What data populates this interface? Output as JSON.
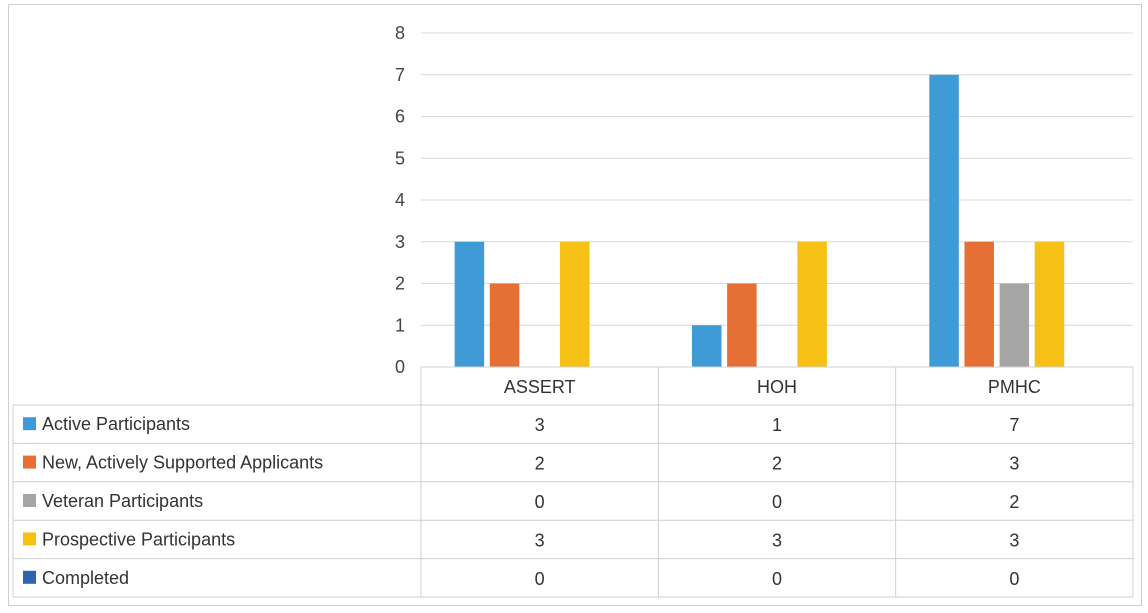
{
  "chart_data": {
    "type": "bar",
    "categories": [
      "ASSERT",
      "HOH",
      "PMHC"
    ],
    "series": [
      {
        "name": "Active Participants",
        "values": [
          3,
          1,
          7
        ],
        "color": "#3f9bd6"
      },
      {
        "name": "New, Actively Supported Applicants",
        "values": [
          2,
          2,
          3
        ],
        "color": "#e56f35"
      },
      {
        "name": "Veteran Participants",
        "values": [
          0,
          0,
          2
        ],
        "color": "#a5a5a5"
      },
      {
        "name": "Prospective Participants",
        "values": [
          3,
          3,
          3
        ],
        "color": "#f6c114"
      },
      {
        "name": "Completed",
        "values": [
          0,
          0,
          0
        ],
        "color": "#2d64ad"
      }
    ],
    "yticks": [
      "0",
      "1",
      "2",
      "3",
      "4",
      "5",
      "6",
      "7",
      "8"
    ],
    "ylim": [
      0,
      8
    ],
    "grid": true,
    "legend": "data-table",
    "table": {
      "rows": [
        [
          "3",
          "1",
          "7"
        ],
        [
          "2",
          "2",
          "3"
        ],
        [
          "0",
          "0",
          "2"
        ],
        [
          "3",
          "3",
          "3"
        ],
        [
          "0",
          "0",
          "0"
        ]
      ]
    }
  }
}
